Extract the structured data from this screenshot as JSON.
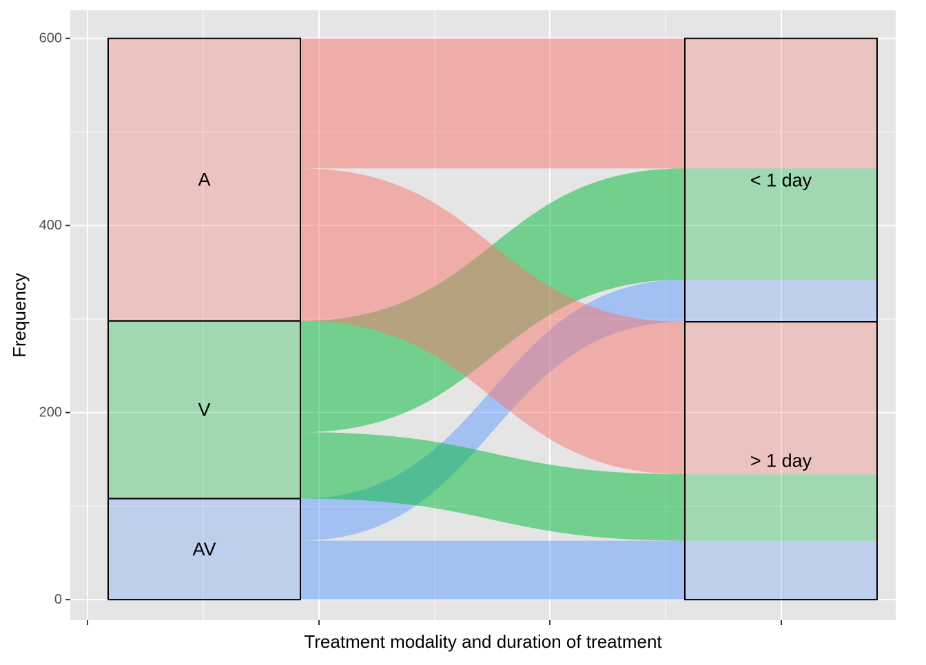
{
  "chart_data": {
    "type": "alluvial",
    "xlabel": "Treatment modality and duration of treatment",
    "ylabel": "Frequency",
    "ylim": [
      -22,
      630
    ],
    "y_ticks": [
      0,
      200,
      400,
      600
    ],
    "grid": true,
    "axes": [
      {
        "strata": [
          {
            "label": "A",
            "value": 302
          },
          {
            "label": "V",
            "value": 190
          },
          {
            "label": "AV",
            "value": 108
          }
        ]
      },
      {
        "strata": [
          {
            "label": "> 1 day",
            "value": 297
          },
          {
            "label": "< 1 day",
            "value": 303
          }
        ]
      }
    ],
    "flows": [
      {
        "from": "A",
        "to": "< 1 day",
        "value": 139
      },
      {
        "from": "A",
        "to": "> 1 day",
        "value": 163
      },
      {
        "from": "V",
        "to": "< 1 day",
        "value": 119
      },
      {
        "from": "V",
        "to": "> 1 day",
        "value": 71
      },
      {
        "from": "AV",
        "to": "< 1 day",
        "value": 45
      },
      {
        "from": "AV",
        "to": "> 1 day",
        "value": 63
      }
    ],
    "stack_order_bottom_to_top": {
      "axis1": [
        "AV",
        "V",
        "A"
      ],
      "axis2_groups": [
        "> 1 day",
        "< 1 day"
      ],
      "within_axis2_group": [
        "AV",
        "V",
        "A"
      ]
    },
    "colors": {
      "A": "#F8766D",
      "V": "#00BA38",
      "AV": "#619CFF",
      "panel_bg": "#E5E5E5",
      "grid": "#FFFFFF"
    }
  }
}
